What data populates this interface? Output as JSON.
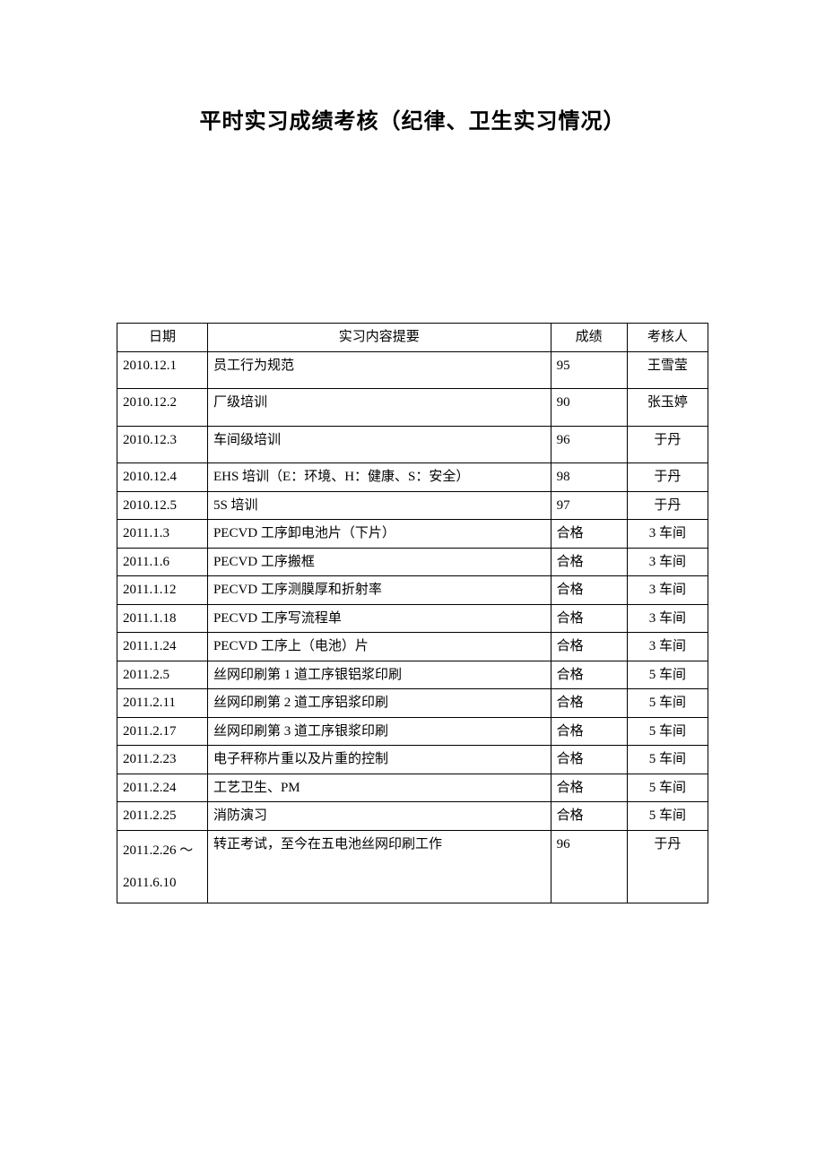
{
  "title": "平时实习成绩考核（纪律、卫生实习情况）",
  "columns": [
    "日期",
    "实习内容提要",
    "成绩",
    "考核人"
  ],
  "rows": [
    {
      "date": "2010.12.1",
      "content": "员工行为规范",
      "score": "95",
      "person": "王雪莹",
      "tall": true
    },
    {
      "date": "2010.12.2",
      "content": "厂级培训",
      "score": "90",
      "person": "张玉婷",
      "tall": true
    },
    {
      "date": "2010.12.3",
      "content": "车间级培训",
      "score": "96",
      "person": "于丹",
      "tall": true
    },
    {
      "date": "2010.12.4",
      "content": "EHS 培训（E：环境、H：健康、S：安全）",
      "score": "98",
      "person": "于丹",
      "tall": false
    },
    {
      "date": "2010.12.5",
      "content": "5S 培训",
      "score": "97",
      "person": "于丹",
      "tall": false
    },
    {
      "date": "2011.1.3",
      "content": "PECVD 工序卸电池片（下片）",
      "score": "合格",
      "person": "3 车间",
      "tall": false
    },
    {
      "date": "2011.1.6",
      "content": "PECVD 工序搬框",
      "score": "合格",
      "person": "3 车间",
      "tall": false
    },
    {
      "date": "2011.1.12",
      "content": "PECVD 工序测膜厚和折射率",
      "score": "合格",
      "person": "3 车间",
      "tall": false
    },
    {
      "date": "2011.1.18",
      "content": "PECVD 工序写流程单",
      "score": "合格",
      "person": "3 车间",
      "tall": false
    },
    {
      "date": "2011.1.24",
      "content": "PECVD 工序上（电池）片",
      "score": "合格",
      "person": "3 车间",
      "tall": false
    },
    {
      "date": "2011.2.5",
      "content": "丝网印刷第 1 道工序银铝浆印刷",
      "score": "合格",
      "person": "5 车间",
      "tall": false
    },
    {
      "date": "2011.2.11",
      "content": "丝网印刷第 2 道工序铝浆印刷",
      "score": "合格",
      "person": "5 车间",
      "tall": false
    },
    {
      "date": "2011.2.17",
      "content": "丝网印刷第 3 道工序银浆印刷",
      "score": "合格",
      "person": "5 车间",
      "tall": false
    },
    {
      "date": "2011.2.23",
      "content": "电子秤称片重以及片重的控制",
      "score": "合格",
      "person": "5 车间",
      "tall": false
    },
    {
      "date": "2011.2.24",
      "content": "工艺卫生、PM",
      "score": "合格",
      "person": "5 车间",
      "tall": false
    },
    {
      "date": "2011.2.25",
      "content": "消防演习",
      "score": "合格",
      "person": "5 车间",
      "tall": false
    },
    {
      "date": "2011.2.26 ～2011.6.10",
      "content": "转正考试，至今在五电池丝网印刷工作",
      "score": "96",
      "person": "于丹",
      "tall": false,
      "multiline": true
    }
  ]
}
